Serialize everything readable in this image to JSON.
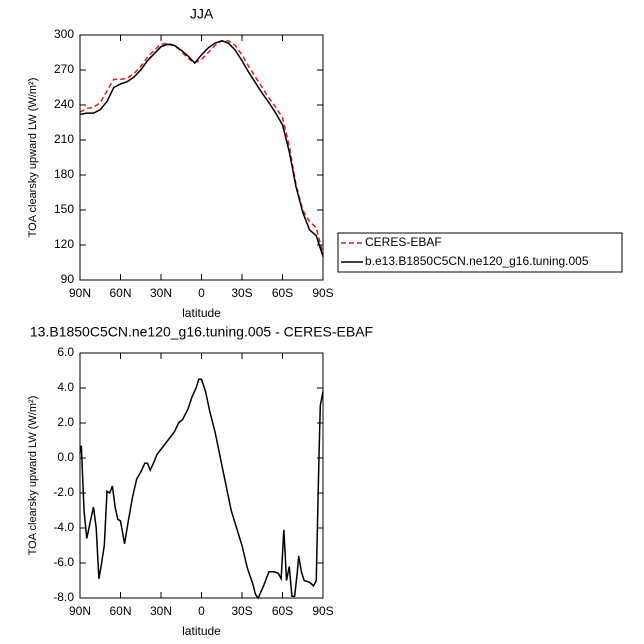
{
  "chart_data": [
    {
      "type": "line",
      "title": "JJA",
      "xlabel": "latitude",
      "ylabel": "TOA clearsky upward LW (W/m²)",
      "x": [
        90,
        85,
        80,
        75,
        70,
        65,
        60,
        55,
        50,
        45,
        40,
        35,
        30,
        25,
        20,
        15,
        10,
        5,
        0,
        -5,
        -10,
        -15,
        -20,
        -25,
        -30,
        -35,
        -40,
        -45,
        -50,
        -55,
        -60,
        -65,
        -70,
        -75,
        -80,
        -85,
        -90
      ],
      "xlim": [
        90,
        -90
      ],
      "xticks": [
        {
          "value": 90,
          "label": "90N"
        },
        {
          "value": 60,
          "label": "60N"
        },
        {
          "value": 30,
          "label": "30N"
        },
        0,
        {
          "value": -30,
          "label": "30S"
        },
        {
          "value": -60,
          "label": "60S"
        },
        {
          "value": -90,
          "label": "90S"
        }
      ],
      "ylim": [
        90,
        300
      ],
      "yticks": [
        90,
        120,
        150,
        180,
        210,
        240,
        270,
        300
      ],
      "legend": "outside-right",
      "series": [
        {
          "name": "CERES-EBAF",
          "color": "#e41a1c",
          "style": "dashed",
          "values": [
            234,
            237,
            238,
            242,
            252,
            262,
            262,
            263,
            267,
            273,
            281,
            287,
            292,
            293,
            291,
            286,
            280,
            276,
            279,
            285,
            291,
            295,
            295,
            291,
            283,
            273,
            264,
            255,
            246,
            238,
            229,
            205,
            172,
            150,
            140,
            135,
            112
          ]
        },
        {
          "name": "b.e13.B1850C5CN.ne120_g16.tuning.005",
          "color": "#000000",
          "style": "solid",
          "values": [
            232,
            233,
            233,
            236,
            243,
            255,
            258,
            260,
            264,
            270,
            278,
            284,
            290,
            292,
            291,
            287,
            282,
            276,
            283,
            289,
            293,
            295,
            293,
            287,
            278,
            268,
            259,
            250,
            242,
            233,
            223,
            200,
            170,
            148,
            133,
            128,
            110
          ]
        }
      ]
    },
    {
      "type": "line",
      "title": "13.B1850C5CN.ne120_g16.tuning.005 - CERES-EBAF",
      "xlabel": "latitude",
      "ylabel": "TOA clearsky upward LW (W/m²)",
      "x": [
        90,
        89,
        87,
        85,
        82,
        80,
        78,
        76,
        74,
        72,
        70,
        68,
        66,
        64,
        62,
        60,
        57,
        54,
        51,
        48,
        45,
        42,
        40,
        38,
        35,
        33,
        30,
        27,
        25,
        22,
        20,
        17,
        14,
        10,
        7,
        4,
        2,
        0,
        -3,
        -6,
        -10,
        -14,
        -18,
        -22,
        -26,
        -30,
        -34,
        -38,
        -40,
        -42,
        -46,
        -50,
        -54,
        -57,
        -59,
        -61,
        -63,
        -65,
        -67,
        -69,
        -71,
        -72,
        -74,
        -76,
        -80,
        -83,
        -85,
        -87,
        -88,
        -90
      ],
      "xlim": [
        90,
        -90
      ],
      "xticks": [
        {
          "value": 90,
          "label": "90N"
        },
        {
          "value": 60,
          "label": "60N"
        },
        {
          "value": 30,
          "label": "30N"
        },
        0,
        {
          "value": -30,
          "label": "30S"
        },
        {
          "value": -60,
          "label": "60S"
        },
        {
          "value": -90,
          "label": "90S"
        }
      ],
      "ylim": [
        -8,
        6
      ],
      "yticks": [
        {
          "value": -8,
          "label": "-8.0"
        },
        {
          "value": -6,
          "label": "-6.0"
        },
        {
          "value": -4,
          "label": "-4.0"
        },
        {
          "value": -2,
          "label": "-2.0"
        },
        {
          "value": 0,
          "label": "0.0"
        },
        {
          "value": 2,
          "label": "2.0"
        },
        {
          "value": 4,
          "label": "4.0"
        },
        {
          "value": 6,
          "label": "6.0"
        }
      ],
      "series": [
        {
          "color": "#000000",
          "style": "solid",
          "values": [
            0.3,
            0.7,
            -3,
            -4.6,
            -3.5,
            -2.8,
            -4,
            -6.9,
            -6,
            -5,
            -1.9,
            -2,
            -1.6,
            -2.8,
            -3.5,
            -3.6,
            -4.9,
            -3.5,
            -2.2,
            -1.2,
            -0.8,
            -0.3,
            -0.3,
            -0.7,
            -0.2,
            0.2,
            0.5,
            0.8,
            1,
            1.3,
            1.5,
            2,
            2.2,
            2.8,
            3.5,
            4,
            4.5,
            4.5,
            3.8,
            2.7,
            1.5,
            0,
            -1.5,
            -3,
            -4,
            -5,
            -6.3,
            -7.2,
            -7.8,
            -8,
            -7.3,
            -6.5,
            -6.5,
            -6.6,
            -6.9,
            -4.1,
            -7,
            -6.2,
            -7.9,
            -7.9,
            -6.5,
            -5.6,
            -6.5,
            -7,
            -7.1,
            -7.3,
            -7,
            0,
            3,
            3.8
          ]
        }
      ]
    }
  ]
}
